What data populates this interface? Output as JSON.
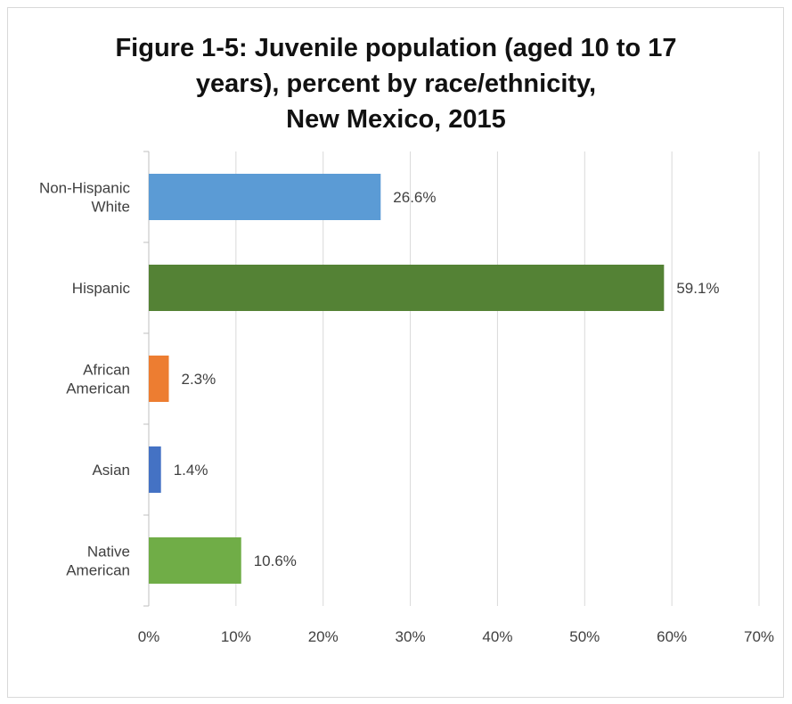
{
  "chart_data": {
    "type": "bar",
    "orientation": "horizontal",
    "title_lines": [
      "Figure 1-5: Juvenile population (aged 10 to 17",
      "years), percent by race/ethnicity,",
      "New Mexico, 2015"
    ],
    "categories": [
      [
        "Non-Hispanic",
        "White"
      ],
      [
        "Hispanic"
      ],
      [
        "African",
        "American"
      ],
      [
        "Asian"
      ],
      [
        "Native",
        "American"
      ]
    ],
    "values": [
      26.6,
      59.1,
      2.3,
      1.4,
      10.6
    ],
    "data_labels": [
      "26.6%",
      "59.1%",
      "2.3%",
      "1.4%",
      "10.6%"
    ],
    "colors": [
      "#5b9bd5",
      "#548235",
      "#ed7d31",
      "#4472c4",
      "#70ad47"
    ],
    "xlim": [
      0,
      70
    ],
    "xticks": [
      0,
      10,
      20,
      30,
      40,
      50,
      60,
      70
    ],
    "xtick_labels": [
      "0%",
      "10%",
      "20%",
      "30%",
      "40%",
      "50%",
      "60%",
      "70%"
    ],
    "grid": true,
    "legend": "none"
  }
}
